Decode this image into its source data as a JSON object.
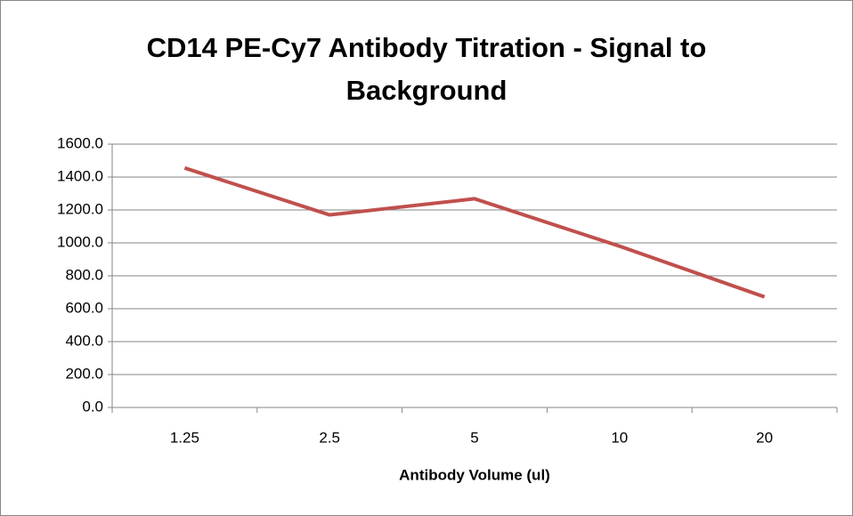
{
  "chart_data": {
    "type": "line",
    "title": "CD14 PE-Cy7 Antibody Titration - Signal to Background",
    "x_label": "Antibody Volume (ul)",
    "categories": [
      "1.25",
      "2.5",
      "5",
      "10",
      "20"
    ],
    "values": [
      1455,
      1170,
      1268,
      980,
      672
    ],
    "color": "#c0504d",
    "ylim": [
      0,
      1600
    ],
    "yticks": [
      {
        "value": 0,
        "label": "0.0"
      },
      {
        "value": 200,
        "label": "200.0"
      },
      {
        "value": 400,
        "label": "400.0"
      },
      {
        "value": 600,
        "label": "600.0"
      },
      {
        "value": 800,
        "label": "800.0"
      },
      {
        "value": 1000,
        "label": "1000.0"
      },
      {
        "value": 1200,
        "label": "1200.0"
      },
      {
        "value": 1400,
        "label": "1400.0"
      },
      {
        "value": 1600,
        "label": "1600.0"
      }
    ],
    "grid": true
  }
}
